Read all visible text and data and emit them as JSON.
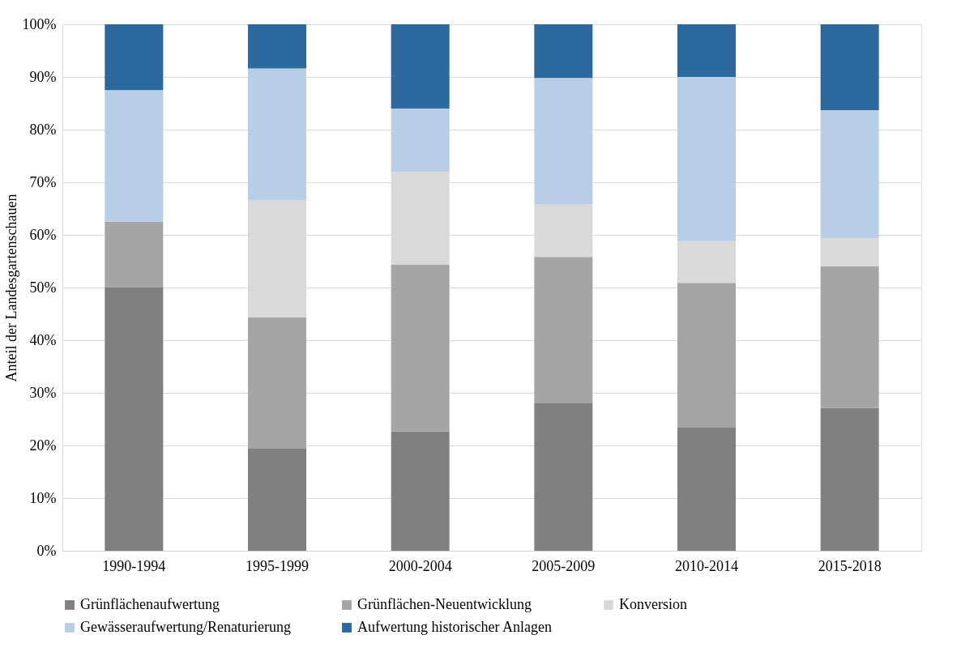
{
  "chart_data": {
    "type": "bar",
    "stacked": true,
    "ylabel": "Anteil der Landesgartenschauen",
    "categories": [
      "1990-1994",
      "1995-1999",
      "2000-2004",
      "2005-2009",
      "2010-2014",
      "2015-2018"
    ],
    "series": [
      {
        "name": "Grünflächenaufwertung",
        "color": "#808080",
        "values": [
          50.0,
          19.4,
          22.7,
          28.0,
          23.5,
          27.1
        ]
      },
      {
        "name": "Grünflächen-Neuentwicklung",
        "color": "#a5a5a5",
        "values": [
          12.5,
          25.0,
          31.7,
          27.8,
          27.4,
          26.9
        ]
      },
      {
        "name": "Konversion",
        "color": "#d9d9d9",
        "values": [
          0.0,
          22.2,
          17.6,
          10.0,
          7.9,
          5.4
        ]
      },
      {
        "name": "Gewässeraufwertung/Renaturierung",
        "color": "#b8cee6",
        "values": [
          25.0,
          25.0,
          12.0,
          24.0,
          31.2,
          24.3
        ]
      },
      {
        "name": "Aufwertung historischer Anlagen",
        "color": "#2c699e",
        "values": [
          12.5,
          8.4,
          16.0,
          10.2,
          10.0,
          16.3
        ]
      }
    ],
    "ylim": [
      0,
      100
    ],
    "yticks": [
      {
        "value": 0,
        "label": "0%"
      },
      {
        "value": 10,
        "label": "10%"
      },
      {
        "value": 20,
        "label": "20%"
      },
      {
        "value": 30,
        "label": "30%"
      },
      {
        "value": 40,
        "label": "40%"
      },
      {
        "value": 50,
        "label": "50%"
      },
      {
        "value": 60,
        "label": "60%"
      },
      {
        "value": 70,
        "label": "70%"
      },
      {
        "value": 80,
        "label": "80%"
      },
      {
        "value": 90,
        "label": "90%"
      },
      {
        "value": 100,
        "label": "100%"
      }
    ],
    "grid": "y",
    "legend": "bottom"
  }
}
